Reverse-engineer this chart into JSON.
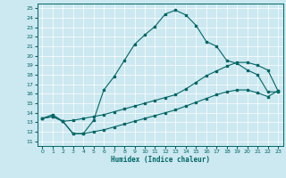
{
  "xlabel": "Humidex (Indice chaleur)",
  "xlim": [
    -0.5,
    23.5
  ],
  "ylim": [
    10.5,
    25.5
  ],
  "xticks": [
    0,
    1,
    2,
    3,
    4,
    5,
    6,
    7,
    8,
    9,
    10,
    11,
    12,
    13,
    14,
    15,
    16,
    17,
    18,
    19,
    20,
    21,
    22,
    23
  ],
  "yticks": [
    11,
    12,
    13,
    14,
    15,
    16,
    17,
    18,
    19,
    20,
    21,
    22,
    23,
    24,
    25
  ],
  "background_color": "#cce8f0",
  "grid_color": "#ffffff",
  "line_color": "#006666",
  "line1_x": [
    0,
    1,
    2,
    3,
    4,
    5,
    6,
    7,
    8,
    9,
    10,
    11,
    12,
    13,
    14,
    15,
    16,
    17,
    18,
    19,
    20,
    21,
    22,
    23
  ],
  "line1_y": [
    13.4,
    13.8,
    13.1,
    11.8,
    11.8,
    13.2,
    16.4,
    17.8,
    19.5,
    21.2,
    22.2,
    23.1,
    24.4,
    24.8,
    24.3,
    23.2,
    21.5,
    21.0,
    19.5,
    19.2,
    18.5,
    18.0,
    16.2,
    16.2
  ],
  "line2_x": [
    0,
    1,
    2,
    3,
    4,
    5,
    6,
    7,
    8,
    9,
    10,
    11,
    12,
    13,
    14,
    15,
    16,
    17,
    18,
    19,
    20,
    21,
    22,
    23
  ],
  "line2_y": [
    13.4,
    13.6,
    13.1,
    13.2,
    13.4,
    13.6,
    13.8,
    14.1,
    14.4,
    14.7,
    15.0,
    15.3,
    15.6,
    15.9,
    16.5,
    17.2,
    17.9,
    18.4,
    18.9,
    19.3,
    19.3,
    19.0,
    18.5,
    16.3
  ],
  "line3_x": [
    0,
    1,
    2,
    3,
    4,
    5,
    6,
    7,
    8,
    9,
    10,
    11,
    12,
    13,
    14,
    15,
    16,
    17,
    18,
    19,
    20,
    21,
    22,
    23
  ],
  "line3_y": [
    13.4,
    13.6,
    13.1,
    11.8,
    11.8,
    12.0,
    12.2,
    12.5,
    12.8,
    13.1,
    13.4,
    13.7,
    14.0,
    14.3,
    14.7,
    15.1,
    15.5,
    15.9,
    16.2,
    16.4,
    16.4,
    16.1,
    15.7,
    16.3
  ]
}
